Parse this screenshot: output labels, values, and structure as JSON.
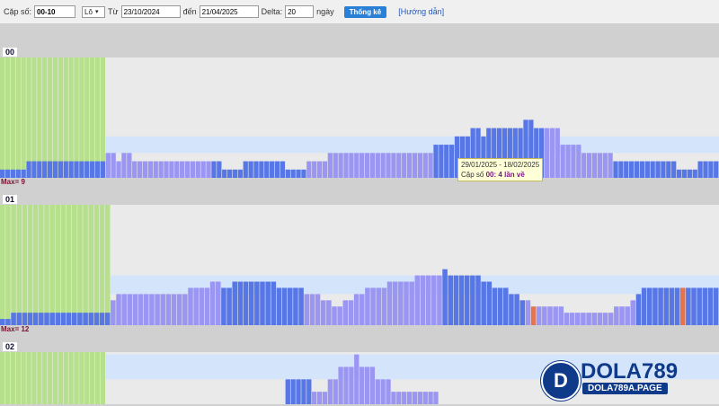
{
  "toolbar": {
    "pair_label": "Cặp số:",
    "pair_value": "00-10",
    "type_value": "Lô",
    "from_label": "Từ",
    "from_value": "23/10/2024",
    "to_label": "đến",
    "to_value": "21/04/2025",
    "delta_label": "Delta:",
    "delta_value": "20",
    "days_label": "ngày",
    "submit_label": "Thống kê",
    "help_label": "[Hướng dẫn]"
  },
  "colors": {
    "green": "#b6e08c",
    "blue_dark": "#5877e6",
    "blue_light": "#9a96f2",
    "band": "#d4e4fb",
    "red": "#e8724e"
  },
  "sections": [
    {
      "label": "00",
      "max_label": "Max= 9",
      "tooltip": {
        "range": "29/01/2025 - 18/02/2025",
        "text": "Cặp số",
        "number": "00",
        "suffix": "lần về",
        "count": "4"
      }
    },
    {
      "label": "01",
      "max_label": "Max= 12"
    },
    {
      "label": "02"
    }
  ],
  "chart_data": [
    {
      "type": "bar",
      "series_name": "00",
      "max": 9,
      "band": [
        3,
        5
      ],
      "green_bars": 20,
      "values": [
        1,
        1,
        1,
        1,
        1,
        2,
        2,
        2,
        2,
        2,
        2,
        2,
        2,
        2,
        2,
        2,
        2,
        2,
        2,
        2,
        3,
        3,
        2,
        3,
        3,
        2,
        2,
        2,
        2,
        2,
        2,
        2,
        2,
        2,
        2,
        2,
        2,
        2,
        2,
        2,
        2,
        2,
        1,
        1,
        1,
        1,
        2,
        2,
        2,
        2,
        2,
        2,
        2,
        2,
        1,
        1,
        1,
        1,
        2,
        2,
        2,
        2,
        3,
        3,
        3,
        3,
        3,
        3,
        3,
        3,
        3,
        3,
        3,
        3,
        3,
        3,
        3,
        3,
        3,
        3,
        3,
        3,
        4,
        4,
        4,
        4,
        5,
        5,
        5,
        6,
        6,
        5,
        6,
        6,
        6,
        6,
        6,
        6,
        6,
        7,
        7,
        6,
        6,
        6,
        6,
        6,
        4,
        4,
        4,
        4,
        3,
        3,
        3,
        3,
        3,
        3,
        2,
        2,
        2,
        2,
        2,
        2,
        2,
        2,
        2,
        2,
        2,
        2,
        1,
        1,
        1,
        1,
        2,
        2,
        2,
        2
      ],
      "dark_flags": [
        1,
        1,
        1,
        1,
        1,
        1,
        1,
        1,
        1,
        1,
        1,
        1,
        1,
        1,
        1,
        1,
        1,
        1,
        1,
        1,
        0,
        0,
        0,
        0,
        0,
        0,
        0,
        0,
        0,
        0,
        0,
        0,
        0,
        0,
        0,
        0,
        0,
        0,
        0,
        0,
        1,
        1,
        1,
        1,
        1,
        1,
        1,
        1,
        1,
        1,
        1,
        1,
        1,
        1,
        1,
        1,
        1,
        1,
        0,
        0,
        0,
        0,
        0,
        0,
        0,
        0,
        0,
        0,
        0,
        0,
        0,
        0,
        0,
        0,
        0,
        0,
        0,
        0,
        0,
        0,
        0,
        0,
        1,
        1,
        1,
        1,
        1,
        1,
        1,
        1,
        1,
        1,
        1,
        1,
        1,
        1,
        1,
        1,
        1,
        1,
        1,
        1,
        1,
        0,
        0,
        0,
        0,
        0,
        0,
        0,
        0,
        0,
        0,
        0,
        0,
        0,
        1,
        1,
        1,
        1,
        1,
        1,
        1,
        1,
        1,
        1,
        1,
        1,
        1,
        1,
        1,
        1,
        1,
        1,
        1,
        1
      ]
    },
    {
      "type": "bar",
      "series_name": "01",
      "max": 12,
      "band": [
        5,
        8
      ],
      "green_bars": 20,
      "values": [
        1,
        1,
        2,
        2,
        2,
        2,
        2,
        2,
        2,
        2,
        2,
        2,
        2,
        2,
        2,
        2,
        2,
        2,
        2,
        2,
        4,
        5,
        5,
        5,
        5,
        5,
        5,
        5,
        5,
        5,
        5,
        5,
        5,
        5,
        6,
        6,
        6,
        6,
        7,
        7,
        6,
        6,
        7,
        7,
        7,
        7,
        7,
        7,
        7,
        7,
        6,
        6,
        6,
        6,
        6,
        5,
        5,
        5,
        4,
        4,
        3,
        3,
        4,
        4,
        5,
        5,
        6,
        6,
        6,
        6,
        7,
        7,
        7,
        7,
        7,
        8,
        8,
        8,
        8,
        8,
        9,
        8,
        8,
        8,
        8,
        8,
        8,
        7,
        7,
        6,
        6,
        6,
        5,
        5,
        4,
        4,
        3,
        3,
        3,
        3,
        3,
        3,
        2,
        2,
        2,
        2,
        2,
        2,
        2,
        2,
        2,
        3,
        3,
        3,
        4,
        5,
        6,
        6,
        6,
        6,
        6,
        6,
        6,
        6,
        6,
        6,
        6,
        6,
        6,
        6
      ],
      "dark_flags": [
        1,
        1,
        1,
        1,
        1,
        1,
        1,
        1,
        1,
        1,
        1,
        1,
        1,
        1,
        1,
        1,
        1,
        1,
        1,
        1,
        0,
        0,
        0,
        0,
        0,
        0,
        0,
        0,
        0,
        0,
        0,
        0,
        0,
        0,
        0,
        0,
        0,
        0,
        0,
        0,
        1,
        1,
        1,
        1,
        1,
        1,
        1,
        1,
        1,
        1,
        1,
        1,
        1,
        1,
        1,
        0,
        0,
        0,
        0,
        0,
        0,
        0,
        0,
        0,
        0,
        0,
        0,
        0,
        0,
        0,
        0,
        0,
        0,
        0,
        0,
        0,
        0,
        0,
        0,
        0,
        1,
        1,
        1,
        1,
        1,
        1,
        1,
        1,
        1,
        1,
        1,
        1,
        1,
        1,
        1,
        0,
        0,
        0,
        0,
        0,
        0,
        0,
        0,
        0,
        0,
        0,
        0,
        0,
        0,
        0,
        0,
        0,
        0,
        0,
        0,
        1,
        1,
        1,
        1,
        1,
        1,
        1,
        1,
        1,
        1,
        1,
        1,
        1,
        1,
        1
      ],
      "red_indices": [
        96,
        123
      ]
    },
    {
      "type": "bar",
      "series_name": "02",
      "max": 6,
      "band": [
        2,
        4
      ],
      "green_bars": 20,
      "values": [
        0,
        0,
        0,
        0,
        0,
        0,
        0,
        0,
        0,
        0,
        0,
        0,
        0,
        0,
        0,
        0,
        0,
        0,
        0,
        0,
        0,
        0,
        0,
        0,
        0,
        0,
        0,
        0,
        0,
        0,
        0,
        0,
        0,
        0,
        0,
        0,
        0,
        0,
        0,
        0,
        0,
        0,
        0,
        0,
        0,
        0,
        0,
        0,
        0,
        0,
        0,
        0,
        0,
        0,
        2,
        2,
        2,
        2,
        2,
        1,
        1,
        1,
        2,
        2,
        3,
        3,
        3,
        4,
        3,
        3,
        3,
        2,
        2,
        2,
        1,
        1,
        1,
        1,
        1,
        1,
        1,
        1,
        1,
        0,
        0,
        0,
        0,
        0,
        0,
        0,
        0,
        0,
        0,
        0,
        0,
        0,
        0,
        0,
        0,
        0,
        0,
        0,
        0,
        0,
        0,
        0,
        0,
        0,
        0,
        0,
        0,
        0,
        0,
        0,
        0,
        0,
        0,
        0,
        0,
        0,
        0,
        0,
        0,
        0,
        0,
        0,
        0,
        0,
        0,
        0,
        0,
        0,
        0,
        0,
        0,
        0
      ],
      "dark_flags": [
        1,
        1,
        1,
        1,
        1,
        1,
        1,
        1,
        1,
        1,
        1,
        1,
        1,
        1,
        1,
        1,
        1,
        1,
        1,
        1,
        0,
        0,
        0,
        0,
        0,
        0,
        0,
        0,
        0,
        0,
        0,
        0,
        0,
        0,
        0,
        0,
        0,
        0,
        0,
        0,
        0,
        0,
        0,
        0,
        0,
        0,
        0,
        0,
        0,
        0,
        0,
        0,
        0,
        0,
        1,
        1,
        1,
        1,
        1,
        0,
        0,
        0,
        0,
        0,
        0,
        0,
        0,
        0,
        0,
        0,
        0,
        0,
        0,
        0,
        0,
        0,
        0,
        0,
        0,
        0,
        0,
        0,
        0,
        0,
        0,
        0,
        0,
        0,
        0,
        0,
        0,
        0,
        0,
        0,
        0,
        0,
        0,
        0,
        0,
        0,
        0,
        0,
        0,
        0,
        0,
        0,
        0,
        0,
        0,
        0,
        0,
        0,
        0,
        0,
        0,
        0,
        0,
        0,
        0,
        0,
        0,
        0,
        0,
        0,
        0,
        0,
        0,
        0,
        0,
        0,
        0,
        0,
        0,
        0,
        0,
        0
      ]
    }
  ],
  "logo": {
    "badge_letter": "D",
    "brand": "DOLA789",
    "domain": "DOLA789A.PAGE"
  }
}
